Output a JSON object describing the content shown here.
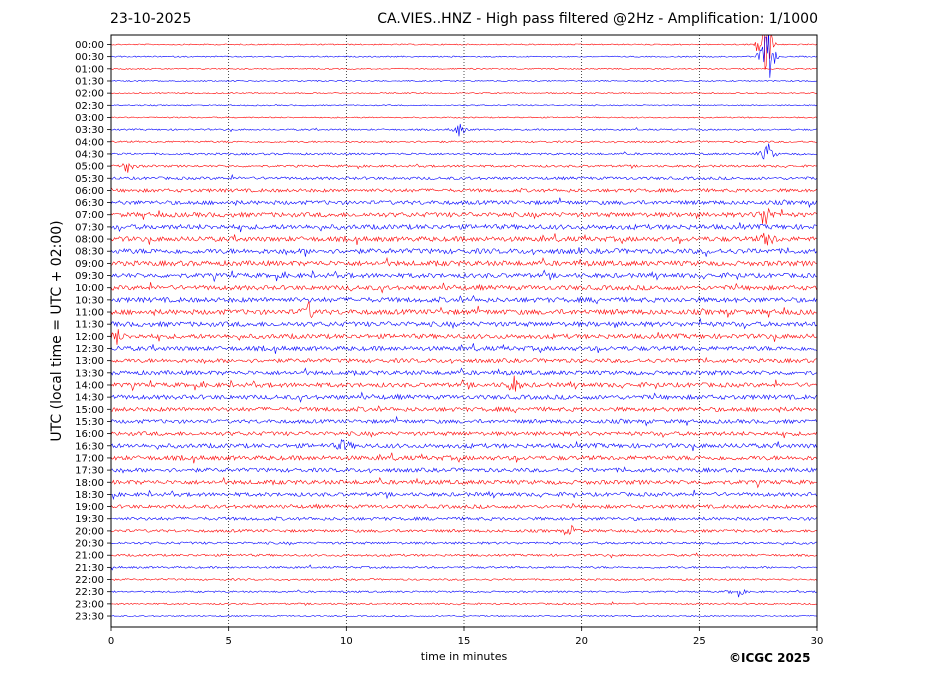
{
  "header": {
    "date": "23-10-2025",
    "title": "CA.VIES..HNZ - High pass filtered @2Hz - Amplification: 1/1000"
  },
  "footer": {
    "credit": "©ICGC 2025"
  },
  "chart_data": {
    "type": "line",
    "title": "CA.VIES..HNZ - High pass filtered @2Hz - Amplification: 1/1000",
    "xlabel": "time in minutes",
    "ylabel": "UTC (local time = UTC + 02:00)",
    "xlim": [
      0,
      30
    ],
    "x_ticks": [
      "0",
      "5",
      "10",
      "15",
      "20",
      "25",
      "30"
    ],
    "grid": "vertical dotted lines at 5-minute intervals",
    "trace_colors": [
      "#ff0000",
      "#0000ff"
    ],
    "rows": [
      "00:00",
      "00:30",
      "01:00",
      "01:30",
      "02:00",
      "02:30",
      "03:00",
      "03:30",
      "04:00",
      "04:30",
      "05:00",
      "05:30",
      "06:00",
      "06:30",
      "07:00",
      "07:30",
      "08:00",
      "08:30",
      "09:00",
      "09:30",
      "10:00",
      "10:30",
      "11:00",
      "11:30",
      "12:00",
      "12:30",
      "13:00",
      "13:30",
      "14:00",
      "14:30",
      "15:00",
      "15:30",
      "16:00",
      "16:30",
      "17:00",
      "17:30",
      "18:00",
      "18:30",
      "19:00",
      "19:30",
      "20:00",
      "20:30",
      "21:00",
      "21:30",
      "22:00",
      "22:30",
      "23:00",
      "23:30"
    ],
    "noise_level": [
      0.05,
      0.06,
      0.05,
      0.06,
      0.05,
      0.05,
      0.06,
      0.15,
      0.2,
      0.25,
      0.3,
      0.45,
      0.6,
      0.75,
      0.9,
      0.95,
      0.95,
      1.0,
      1.0,
      0.9,
      0.9,
      0.95,
      1.0,
      0.95,
      0.9,
      0.85,
      0.75,
      0.8,
      0.85,
      0.85,
      0.8,
      0.7,
      0.75,
      0.85,
      0.85,
      0.75,
      0.8,
      0.7,
      0.65,
      0.55,
      0.45,
      0.35,
      0.3,
      0.25,
      0.2,
      0.18,
      0.15,
      0.05
    ],
    "events": [
      {
        "row": "00:00",
        "minute": 27.8,
        "amplitude": 12
      },
      {
        "row": "00:30",
        "minute": 27.9,
        "amplitude": 8
      },
      {
        "row": "03:30",
        "minute": 14.8,
        "amplitude": 1.5
      },
      {
        "row": "04:30",
        "minute": 27.9,
        "amplitude": 2.5
      },
      {
        "row": "05:00",
        "minute": 0.7,
        "amplitude": 1.5
      },
      {
        "row": "07:00",
        "minute": 27.8,
        "amplitude": 3
      },
      {
        "row": "08:00",
        "minute": 27.9,
        "amplitude": 2
      },
      {
        "row": "11:00",
        "minute": 8.4,
        "amplitude": 1.5
      },
      {
        "row": "12:00",
        "minute": 0.2,
        "amplitude": 2
      },
      {
        "row": "14:00",
        "minute": 17.1,
        "amplitude": 2
      },
      {
        "row": "16:30",
        "minute": 9.9,
        "amplitude": 1.5
      },
      {
        "row": "20:00",
        "minute": 19.6,
        "amplitude": 1
      },
      {
        "row": "22:30",
        "minute": 26.6,
        "amplitude": 1.5
      }
    ]
  }
}
